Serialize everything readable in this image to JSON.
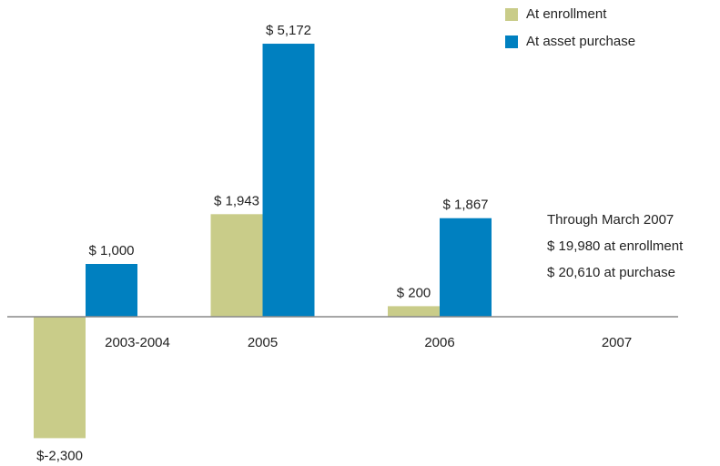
{
  "chart_data": {
    "type": "bar",
    "categories": [
      "2003-2004",
      "2005",
      "2006",
      "2007"
    ],
    "series": [
      {
        "name": "At enrollment",
        "color": "#c9cc89",
        "values": [
          -2300,
          1943,
          200,
          null
        ],
        "value_labels": [
          "$-2,300",
          "$ 1,943",
          "$ 200",
          null
        ]
      },
      {
        "name": "At asset purchase",
        "color": "#0080c0",
        "values": [
          1000,
          5172,
          1867,
          null
        ],
        "value_labels": [
          "$ 1,000",
          "$ 5,172",
          "$ 1,867",
          null
        ]
      }
    ],
    "ylim": [
      -2500,
      5500
    ],
    "legend": "upper right",
    "annotations": [
      "Through March 2007",
      "$ 19,980 at enrollment",
      "$ 20,610 at purchase"
    ]
  }
}
